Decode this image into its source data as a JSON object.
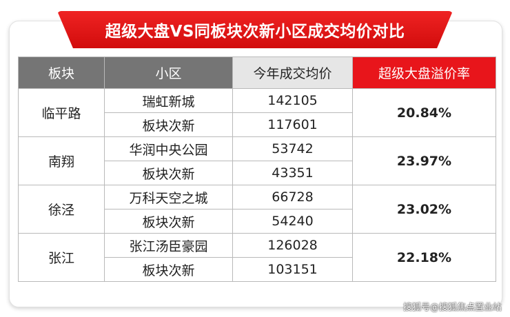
{
  "title": "超级大盘VS同板块次新小区成交均价对比",
  "table": {
    "headers": [
      "板块",
      "小区",
      "今年成交均价",
      "超级大盘溢价率"
    ],
    "groups": [
      {
        "plate": "临平路",
        "premium": "20.84%",
        "rows": [
          {
            "community": "瑞虹新城",
            "price": "142105"
          },
          {
            "community": "板块次新",
            "price": "117601"
          }
        ]
      },
      {
        "plate": "南翔",
        "premium": "23.97%",
        "rows": [
          {
            "community": "华润中央公园",
            "price": "53742"
          },
          {
            "community": "板块次新",
            "price": "43351"
          }
        ]
      },
      {
        "plate": "徐泾",
        "premium": "23.02%",
        "rows": [
          {
            "community": "万科天空之城",
            "price": "66728"
          },
          {
            "community": "板块次新",
            "price": "54240"
          }
        ]
      },
      {
        "plate": "张江",
        "premium": "22.18%",
        "rows": [
          {
            "community": "张江汤臣豪园",
            "price": "126028"
          },
          {
            "community": "板块次新",
            "price": "103151"
          }
        ]
      }
    ]
  },
  "watermark": "搜狐号@搜狐焦点置业站",
  "colors": {
    "banner": "#e01515",
    "header_dark": "#757575",
    "header_light": "#e6e6e6",
    "premium_header": "#e8151b",
    "premium_text": "#d81e1e"
  }
}
